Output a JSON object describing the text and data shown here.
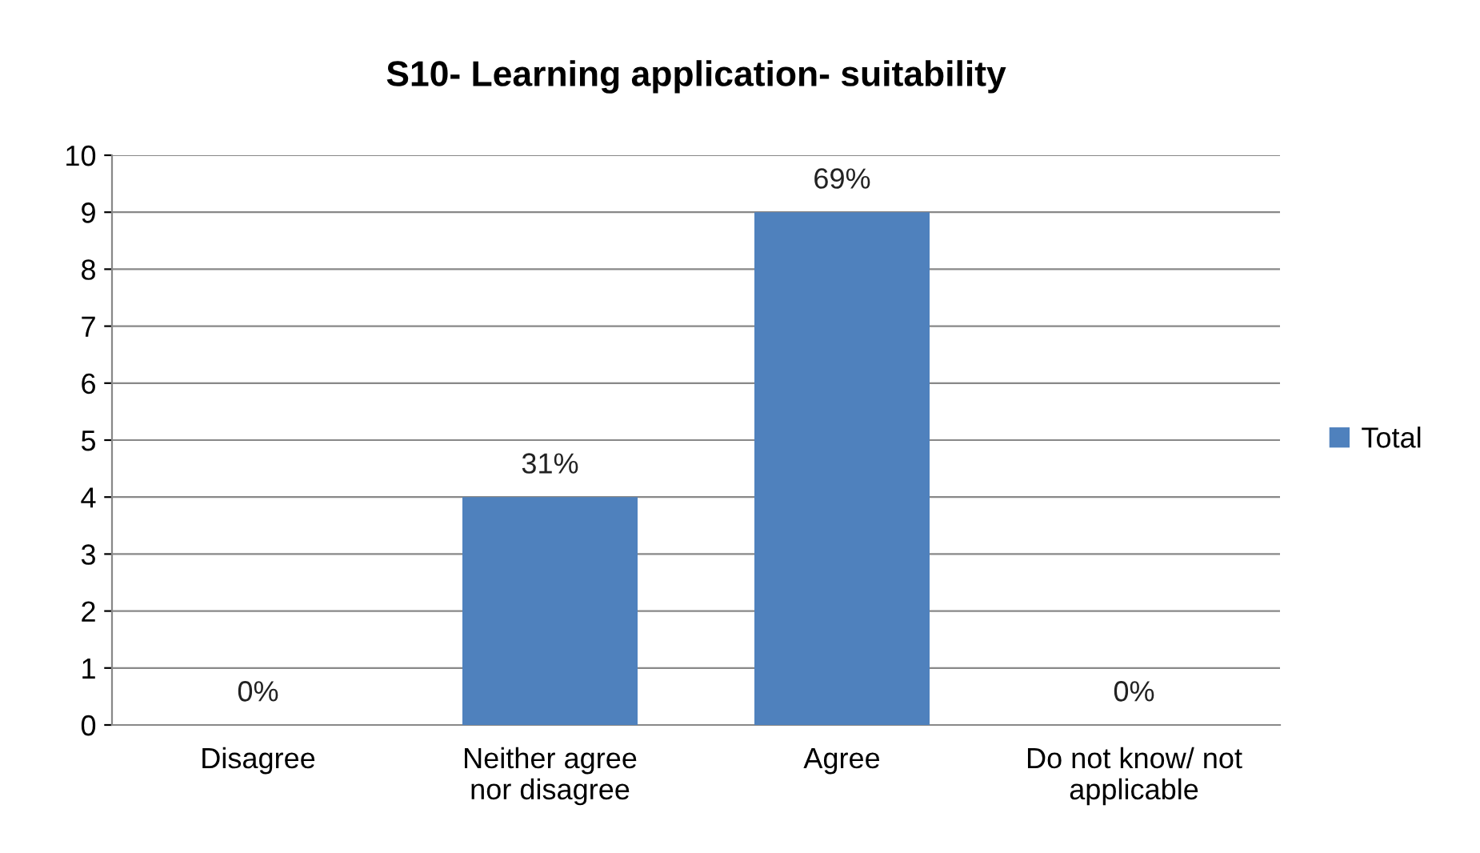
{
  "chart_data": {
    "type": "bar",
    "title": "S10- Learning application- suitability",
    "categories": [
      "Disagree",
      "Neither agree\nnor disagree",
      "Agree",
      "Do not know/ not\napplicable"
    ],
    "series": [
      {
        "name": "Total",
        "color": "#4f81bd",
        "values": [
          0,
          4,
          9,
          0
        ]
      }
    ],
    "annotations": [
      {
        "text": "0%",
        "x": "Disagree",
        "y": 0
      },
      {
        "text": "31%",
        "x": "Neither agree\nnor disagree",
        "y": 4
      },
      {
        "text": "69%",
        "x": "Agree",
        "y": 9
      },
      {
        "text": "0%",
        "x": "Do not know/ not\napplicable",
        "y": 0
      }
    ],
    "ylim": [
      0,
      10
    ],
    "yticks": [
      0,
      1,
      2,
      3,
      4,
      5,
      6,
      7,
      8,
      9,
      10
    ],
    "grid": "y",
    "legend": "right"
  }
}
